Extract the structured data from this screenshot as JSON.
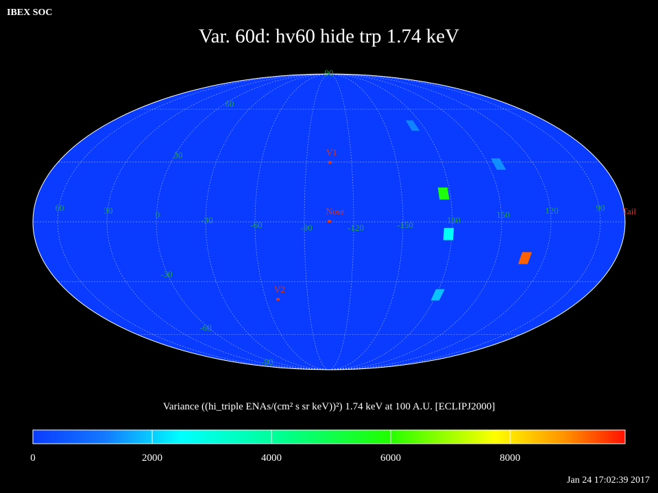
{
  "header": {
    "label": "IBEX SOC",
    "timestamp": "Jan 24 17:02:39 2017"
  },
  "title": "Var. 60d: hv60 hide trp 1.74 keV",
  "map": {
    "longitude_labels": [
      "60",
      "30",
      "0",
      "-30",
      "-60",
      "-90",
      "-120",
      "-150",
      "180",
      "150",
      "120",
      "90"
    ],
    "latitude_labels": [
      "90",
      "60",
      "30",
      "-30",
      "-60",
      "-90"
    ],
    "markers": [
      "V1",
      "Nose",
      "V2",
      "Tail"
    ],
    "pixels": [
      {
        "lon": -176,
        "lat": 14,
        "value": 5800
      },
      {
        "lon": -178,
        "lat": -6,
        "value": 2600
      },
      {
        "lon": 132,
        "lat": -18,
        "value": 9300
      },
      {
        "lon": 143,
        "lat": 29,
        "value": 1400
      },
      {
        "lon": -172,
        "lat": 50,
        "value": 1300
      },
      {
        "lon": 179,
        "lat": -37,
        "value": 1900
      }
    ]
  },
  "colorbar": {
    "title": "Variance ((hi_triple ENAs/(cm² s sr keV))²) 1.74 keV at 100 A.U. [ECLIPJ2000]",
    "lim": [
      0,
      9930
    ],
    "ticks": [
      0,
      2000,
      4000,
      6000,
      8000
    ]
  }
}
